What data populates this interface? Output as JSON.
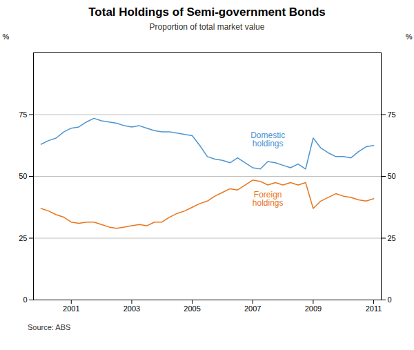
{
  "chart_data": {
    "type": "line",
    "title": "Total Holdings of Semi-government Bonds",
    "subtitle": "Proportion of total market value",
    "source": "Source: ABS",
    "ylabel": "%",
    "y2label": "%",
    "xlim": [
      1999.75,
      2011.25
    ],
    "xticks": [
      2001,
      2003,
      2005,
      2007,
      2009,
      2011
    ],
    "ylim": [
      0,
      100
    ],
    "yticks": [
      0,
      25,
      50,
      75
    ],
    "y2lim": [
      0,
      100
    ],
    "y2ticks": [
      0,
      25,
      50,
      75
    ],
    "grid": true,
    "x": [
      2000.0,
      2000.25,
      2000.5,
      2000.75,
      2001.0,
      2001.25,
      2001.5,
      2001.75,
      2002.0,
      2002.25,
      2002.5,
      2002.75,
      2003.0,
      2003.25,
      2003.5,
      2003.75,
      2004.0,
      2004.25,
      2004.5,
      2004.75,
      2005.0,
      2005.25,
      2005.5,
      2005.75,
      2006.0,
      2006.25,
      2006.5,
      2006.75,
      2007.0,
      2007.25,
      2007.5,
      2007.75,
      2008.0,
      2008.25,
      2008.5,
      2008.75,
      2009.0,
      2009.25,
      2009.5,
      2009.75,
      2010.0,
      2010.25,
      2010.5,
      2010.75,
      2011.0
    ],
    "series": [
      {
        "name": "Domestic\nholdings",
        "color": "#4d94d0",
        "values": [
          63.0,
          64.5,
          65.5,
          68.0,
          69.5,
          70.0,
          72.0,
          73.5,
          72.5,
          72.0,
          71.5,
          70.5,
          70.0,
          70.5,
          69.5,
          68.5,
          68.0,
          68.0,
          67.5,
          67.0,
          66.5,
          62.5,
          58.0,
          57.0,
          56.5,
          55.5,
          57.5,
          55.5,
          53.5,
          53.0,
          56.0,
          55.5,
          54.5,
          53.5,
          55.0,
          53.0,
          65.5,
          61.5,
          59.5,
          58.0,
          58.0,
          57.5,
          60.0,
          62.0,
          62.5
        ]
      },
      {
        "name": "Foreign\nholdings",
        "color": "#e8751a",
        "values": [
          37.0,
          36.0,
          34.5,
          33.5,
          31.5,
          31.0,
          31.5,
          31.5,
          30.5,
          29.5,
          29.0,
          29.5,
          30.0,
          30.5,
          30.0,
          31.5,
          31.5,
          33.5,
          35.0,
          36.0,
          37.5,
          39.0,
          40.0,
          42.0,
          43.5,
          45.0,
          44.5,
          46.5,
          48.5,
          48.0,
          46.5,
          47.5,
          46.5,
          47.5,
          46.5,
          47.5,
          37.0,
          40.0,
          41.5,
          43.0,
          42.0,
          41.5,
          40.5,
          40.0,
          41.0
        ]
      }
    ],
    "annotations": [
      {
        "text": "Domestic\nholdings",
        "x": 2007.5,
        "y": 65.0,
        "color": "#4d94d0"
      },
      {
        "text": "Foreign\nholdings",
        "x": 2007.5,
        "y": 41.0,
        "color": "#e8751a"
      }
    ]
  }
}
